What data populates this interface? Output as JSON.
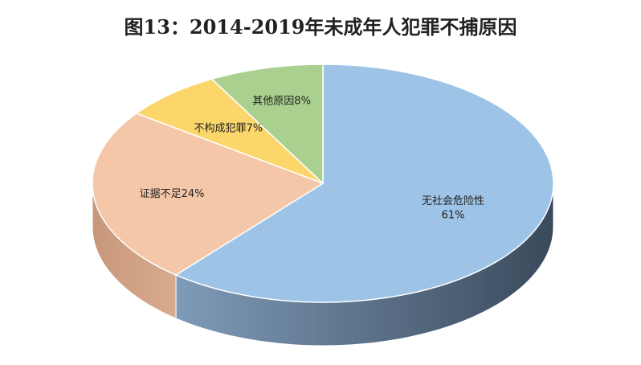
{
  "chart_data": {
    "type": "pie",
    "title": "图13：2014-2019年未成年人犯罪不捕原因",
    "slices": [
      {
        "name": "无社会危险性",
        "value": 61,
        "label_line1": "无社会危险性",
        "label_line2": "61%",
        "color": "#9dc3e6",
        "side_color": "#5a7390"
      },
      {
        "name": "证据不足",
        "value": 24,
        "label_line1": "证据不足24%",
        "label_line2": "",
        "color": "#f4c7a8",
        "side_color": "#c99a7e"
      },
      {
        "name": "不构成犯罪",
        "value": 7,
        "label_line1": "不构成犯罪7%",
        "label_line2": "",
        "color": "#fbd76b",
        "side_color": "#c9a94a"
      },
      {
        "name": "其他原因",
        "value": 8,
        "label_line1": "其他原因8%",
        "label_line2": "",
        "color": "#a9d08e",
        "side_color": "#7a9e63"
      }
    ]
  }
}
